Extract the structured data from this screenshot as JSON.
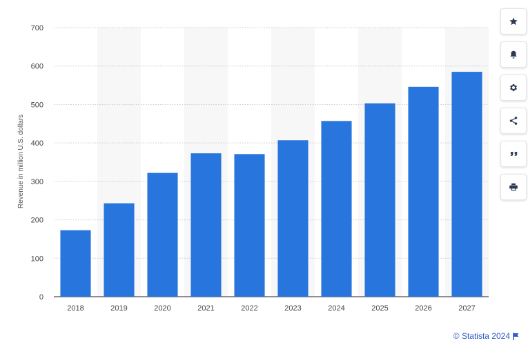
{
  "chart_data": {
    "type": "bar",
    "categories": [
      "2018",
      "2019",
      "2020",
      "2021",
      "2022",
      "2023",
      "2024",
      "2025",
      "2026",
      "2027"
    ],
    "values": [
      173,
      243,
      322,
      373,
      371,
      407,
      457,
      503,
      546,
      585
    ],
    "xlabel": "",
    "ylabel": "Revenue in million U.S. dollars",
    "ylim": [
      0,
      700
    ],
    "yticks": [
      0,
      100,
      200,
      300,
      400,
      500,
      600,
      700
    ],
    "grid": true,
    "bar_color": "#2876dd",
    "band_color": "#f7f7f7"
  },
  "toolbar": {
    "buttons": [
      {
        "name": "favorite-button",
        "icon": "star-icon"
      },
      {
        "name": "notification-button",
        "icon": "bell-icon"
      },
      {
        "name": "settings-button",
        "icon": "gear-icon"
      },
      {
        "name": "share-button",
        "icon": "share-icon"
      },
      {
        "name": "cite-button",
        "icon": "quote-icon"
      },
      {
        "name": "print-button",
        "icon": "print-icon"
      }
    ]
  },
  "credit": {
    "text": "© Statista 2024",
    "color": "#2a5ac8"
  }
}
